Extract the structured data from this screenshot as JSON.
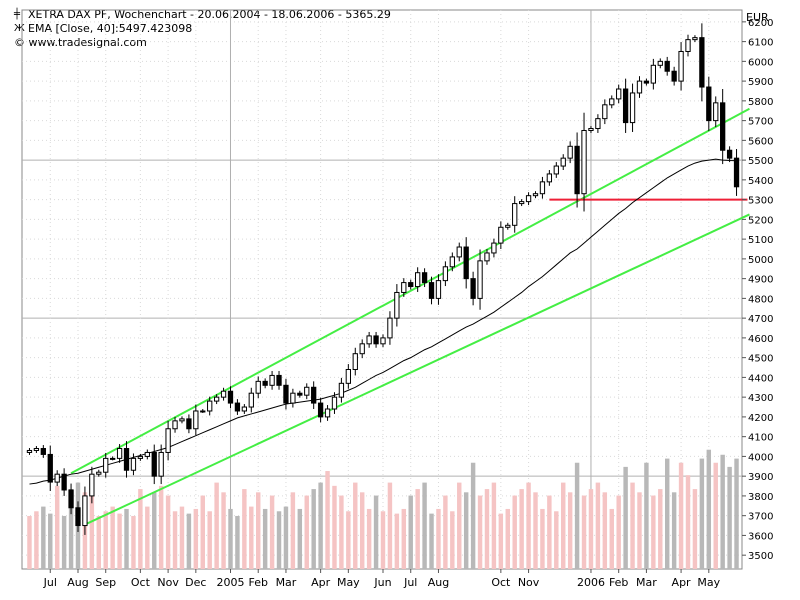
{
  "legend": {
    "line1": "XETRA DAX PF, Wochenchart - 20.06.2004 - 18.06.2006 - 5365.29",
    "line2": "EMA [Close, 40]:5497.423098",
    "line3": "© www.tradesignal.com"
  },
  "colors": {
    "background": "#ffffff",
    "grid_major": "#b0b0b0",
    "grid_minor": "#d9d9d9",
    "channel": "#44ee44",
    "support": "#ee1f36",
    "ema": "#000000",
    "volume_up": "#f5c4c4",
    "volume_down": "#b8b8b8"
  },
  "chart_data": {
    "type": "candlestick",
    "title": "XETRA DAX PF, Wochenchart - 20.06.2004 - 18.06.2006 - 5365.29",
    "currency_label": "EUR",
    "ylim": [
      3430,
      6260
    ],
    "y_ticks": [
      3500,
      3600,
      3700,
      3800,
      3900,
      4000,
      4100,
      4200,
      4300,
      4400,
      4500,
      4600,
      4700,
      4800,
      4900,
      5000,
      5100,
      5200,
      5300,
      5400,
      5500,
      5600,
      5700,
      5800,
      5900,
      6000,
      6100,
      6200
    ],
    "y_major_ticks": [
      3900,
      4700,
      5500
    ],
    "x_labels": [
      {
        "label": "Jul",
        "week": 3
      },
      {
        "label": "Aug",
        "week": 7
      },
      {
        "label": "Sep",
        "week": 11
      },
      {
        "label": "Oct",
        "week": 16
      },
      {
        "label": "Nov",
        "week": 20
      },
      {
        "label": "Dec",
        "week": 24
      },
      {
        "label": "2005",
        "week": 29
      },
      {
        "label": "Feb",
        "week": 33
      },
      {
        "label": "Mar",
        "week": 37
      },
      {
        "label": "Apr",
        "week": 42
      },
      {
        "label": "May",
        "week": 46
      },
      {
        "label": "Jun",
        "week": 51
      },
      {
        "label": "Jul",
        "week": 55
      },
      {
        "label": "Aug",
        "week": 59
      },
      {
        "label": "Oct",
        "week": 68
      },
      {
        "label": "Nov",
        "week": 72
      },
      {
        "label": "2006",
        "week": 81
      },
      {
        "label": "Feb",
        "week": 85
      },
      {
        "label": "Mar",
        "week": 89
      },
      {
        "label": "Apr",
        "week": 94
      },
      {
        "label": "May",
        "week": 98
      }
    ],
    "grid": true,
    "closes": [
      4030,
      4040,
      4010,
      3870,
      3910,
      3830,
      3740,
      3650,
      3800,
      3910,
      3920,
      3990,
      3990,
      4040,
      3930,
      3990,
      4000,
      4020,
      3900,
      4020,
      4140,
      4180,
      4190,
      4140,
      4230,
      4230,
      4280,
      4300,
      4330,
      4270,
      4230,
      4250,
      4320,
      4380,
      4360,
      4410,
      4360,
      4270,
      4320,
      4310,
      4350,
      4270,
      4200,
      4240,
      4300,
      4370,
      4440,
      4520,
      4570,
      4610,
      4570,
      4600,
      4700,
      4830,
      4880,
      4860,
      4930,
      4880,
      4800,
      4890,
      4960,
      5010,
      5060,
      4900,
      4800,
      4990,
      5030,
      5080,
      5160,
      5170,
      5280,
      5290,
      5320,
      5330,
      5390,
      5430,
      5470,
      5510,
      5570,
      5330,
      5650,
      5660,
      5710,
      5780,
      5810,
      5860,
      5690,
      5840,
      5900,
      5890,
      5980,
      6000,
      5950,
      5900,
      6050,
      6110,
      6120,
      5870,
      5700,
      5790,
      5550,
      5510,
      5365
    ],
    "ema": {
      "name": "EMA [Close, 40]",
      "values": [
        3860,
        3865,
        3875,
        3880,
        3890,
        3900,
        3910,
        3915,
        3925,
        3935,
        3945,
        3955,
        3965,
        3975,
        3985,
        3995,
        4005,
        4015,
        4025,
        4035,
        4045,
        4060,
        4075,
        4090,
        4105,
        4120,
        4135,
        4150,
        4165,
        4180,
        4195,
        4205,
        4215,
        4225,
        4235,
        4245,
        4255,
        4265,
        4270,
        4275,
        4280,
        4285,
        4290,
        4300,
        4310,
        4320,
        4335,
        4350,
        4370,
        4390,
        4410,
        4425,
        4445,
        4465,
        4485,
        4500,
        4520,
        4540,
        4555,
        4575,
        4595,
        4615,
        4635,
        4655,
        4670,
        4690,
        4710,
        4730,
        4755,
        4780,
        4805,
        4830,
        4860,
        4885,
        4910,
        4940,
        4970,
        5000,
        5030,
        5050,
        5080,
        5110,
        5140,
        5170,
        5200,
        5230,
        5255,
        5285,
        5310,
        5335,
        5360,
        5385,
        5410,
        5430,
        5450,
        5470,
        5485,
        5495,
        5500,
        5505,
        5500,
        5498,
        5497
      ]
    },
    "volume": [
      1,
      1,
      1,
      1,
      2,
      1,
      2,
      2,
      2,
      2,
      1,
      1,
      1,
      1,
      1,
      1,
      2,
      1,
      2,
      2,
      2,
      1,
      1,
      1,
      1,
      2,
      1,
      2,
      2,
      1,
      1,
      2,
      1,
      2,
      1,
      2,
      1,
      1,
      2,
      1,
      2,
      2,
      2,
      3,
      2,
      2,
      1,
      2,
      2,
      1,
      2,
      1,
      2,
      1,
      1,
      2,
      2,
      2,
      1,
      1,
      2,
      1,
      2,
      2,
      3,
      2,
      2,
      2,
      1,
      1,
      2,
      2,
      2,
      2,
      1,
      2,
      1,
      2,
      2,
      3,
      2,
      2,
      2,
      2,
      1,
      2,
      3,
      2,
      2,
      3,
      2,
      2,
      3,
      2,
      3,
      3,
      2,
      3,
      4,
      3,
      4,
      3,
      3
    ],
    "channel_lines": [
      {
        "name": "upper",
        "x": [
          6,
          103
        ],
        "y": [
          3915,
          5760
        ]
      },
      {
        "name": "lower",
        "x": [
          8,
          103
        ],
        "y": [
          3655,
          5225
        ]
      }
    ],
    "support_line": {
      "x": [
        75,
        103
      ],
      "y": [
        5300,
        5300
      ]
    }
  }
}
